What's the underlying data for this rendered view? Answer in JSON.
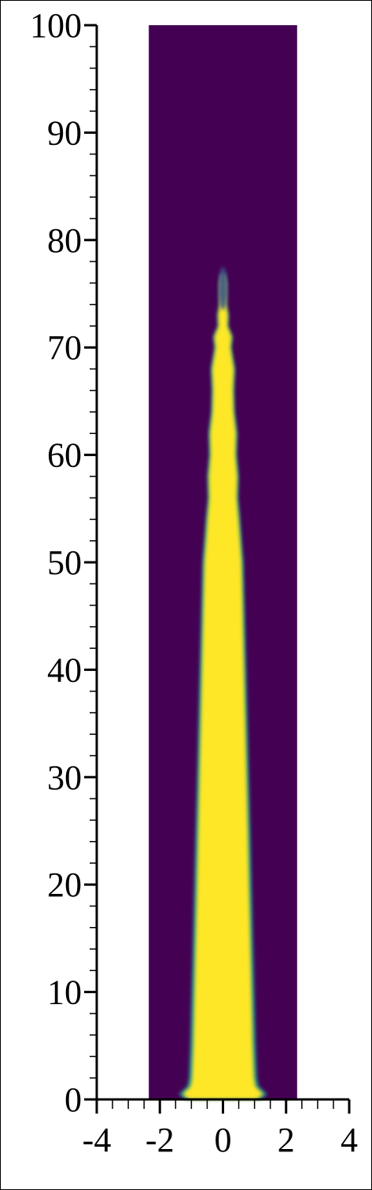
{
  "chart_data": {
    "type": "heatmap",
    "title": "",
    "xlabel": "",
    "ylabel": "",
    "xlim": [
      -4,
      4
    ],
    "ylim": [
      0,
      100
    ],
    "x_ticks": [
      -4,
      -2,
      0,
      2,
      4
    ],
    "x_tick_labels": [
      "-4",
      "-2",
      "0",
      "2",
      "4"
    ],
    "y_ticks": [
      0,
      10,
      20,
      30,
      40,
      50,
      60,
      70,
      80,
      90,
      100
    ],
    "y_tick_labels": [
      "0",
      "10",
      "20",
      "30",
      "40",
      "50",
      "60",
      "70",
      "80",
      "90",
      "100"
    ],
    "domain_x_range": [
      -2.35,
      2.35
    ],
    "domain_y_range": [
      0,
      100
    ],
    "background_color": "#440154",
    "fill_color": "#fde725",
    "edge_color": "#21918c",
    "tip_color": "#3b528b",
    "grid": false,
    "jet_profile": {
      "y": [
        0,
        0.5,
        1.2,
        2,
        5,
        10,
        15,
        20,
        25,
        30,
        35,
        40,
        45,
        50,
        52,
        54,
        56,
        58,
        60,
        62,
        64,
        66,
        68,
        70,
        71,
        72,
        73,
        74,
        75,
        76,
        76.8
      ],
      "half_width": [
        1.1,
        1.3,
        1.05,
        1.0,
        0.96,
        0.92,
        0.88,
        0.84,
        0.8,
        0.76,
        0.72,
        0.68,
        0.64,
        0.6,
        0.55,
        0.5,
        0.44,
        0.46,
        0.4,
        0.42,
        0.34,
        0.32,
        0.35,
        0.24,
        0.28,
        0.14,
        0.16,
        0.1,
        0.1,
        0.1,
        0.05
      ]
    }
  }
}
